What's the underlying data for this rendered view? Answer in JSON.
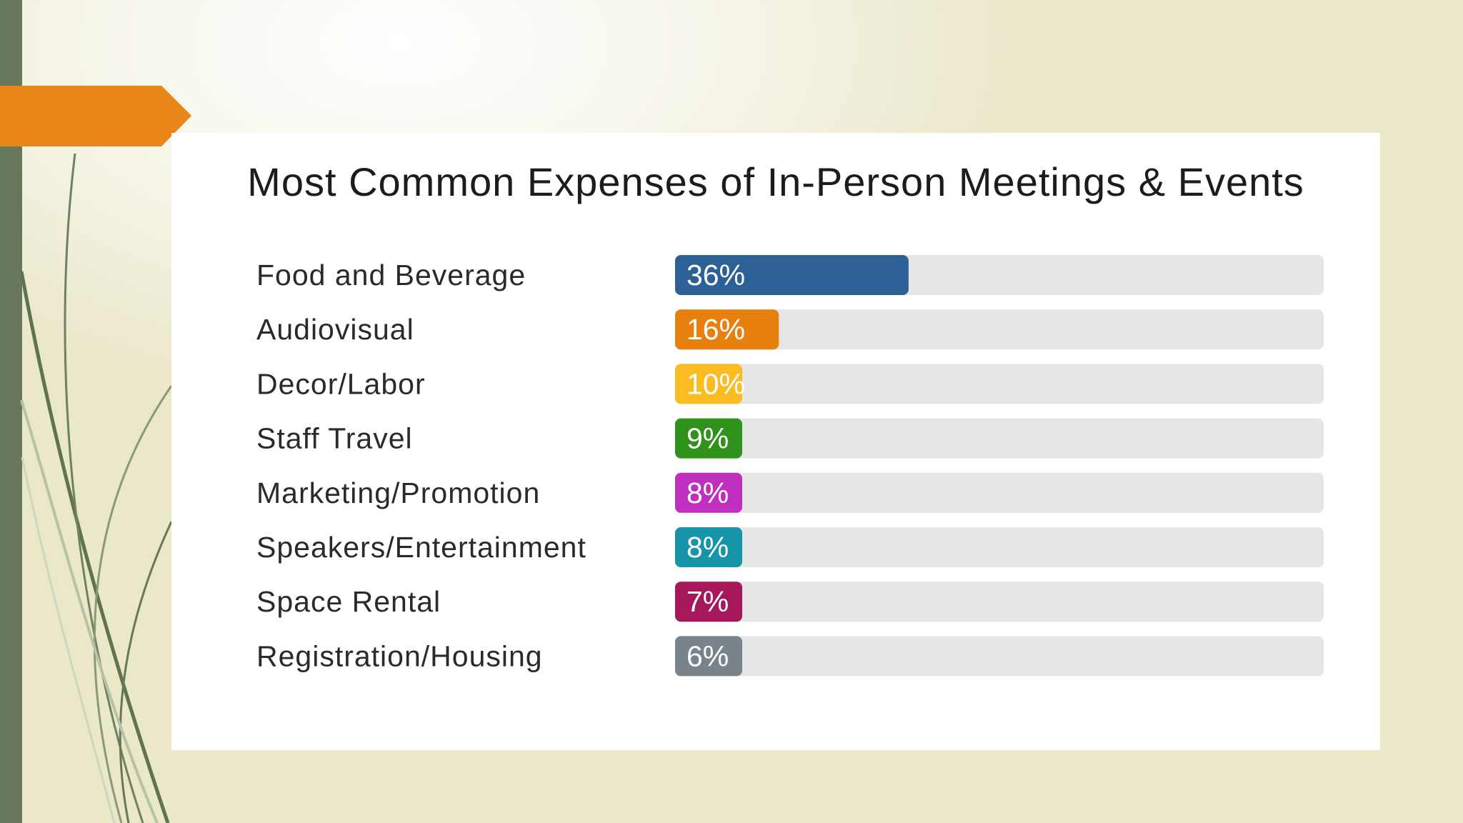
{
  "colors": {
    "track": "#e6e6e6",
    "accent_tab": "#e8861a",
    "side_bar": "#66775a"
  },
  "chart_data": {
    "type": "bar",
    "orientation": "horizontal",
    "title": "Most Common Expenses of In-Person Meetings & Events",
    "xlim": [
      0,
      100
    ],
    "categories": [
      "Food and Beverage",
      "Audiovisual",
      "Decor/Labor",
      "Staff Travel",
      "Marketing/Promotion",
      "Speakers/Entertainment",
      "Space Rental",
      "Registration/Housing"
    ],
    "values": [
      36,
      16,
      10,
      9,
      8,
      8,
      7,
      6
    ],
    "value_labels": [
      "36%",
      "16%",
      "10%",
      "9%",
      "8%",
      "8%",
      "7%",
      "6%"
    ],
    "bar_colors": [
      "#2d6196",
      "#e8800e",
      "#fbbc22",
      "#2f931b",
      "#c12fbe",
      "#1795a8",
      "#a7175b",
      "#79838a"
    ]
  }
}
